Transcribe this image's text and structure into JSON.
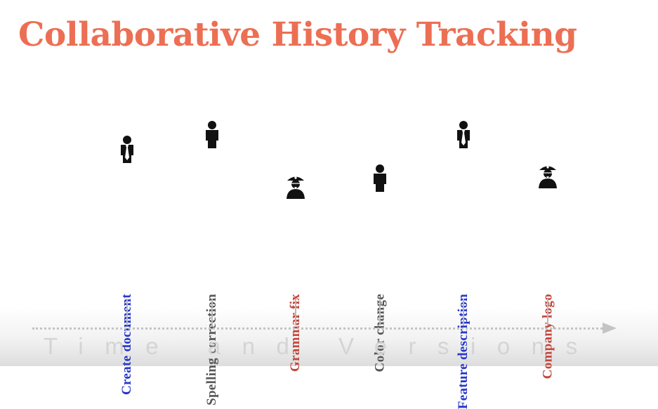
{
  "title": "Collaborative History Tracking",
  "events": [
    {
      "label": "Create document",
      "color": "#2637c8",
      "icon": "person-with-tie-icon"
    },
    {
      "label": "Spelling correction",
      "color": "#555555",
      "icon": "person-icon"
    },
    {
      "label": "Grammar fix",
      "color": "#c2453b",
      "icon": "pirate-icon"
    },
    {
      "label": "Color change",
      "color": "#555555",
      "icon": "person-icon"
    },
    {
      "label": "Feature description",
      "color": "#2637c8",
      "icon": "person-with-tie-icon"
    },
    {
      "label": "Company logo",
      "color": "#c2453b",
      "icon": "pirate-icon"
    }
  ],
  "axis": {
    "label": "Time and Versions"
  },
  "colors": {
    "title": "#ec6f54",
    "axis": "#c4c4c4",
    "axis_label": "#d4d4d4"
  }
}
